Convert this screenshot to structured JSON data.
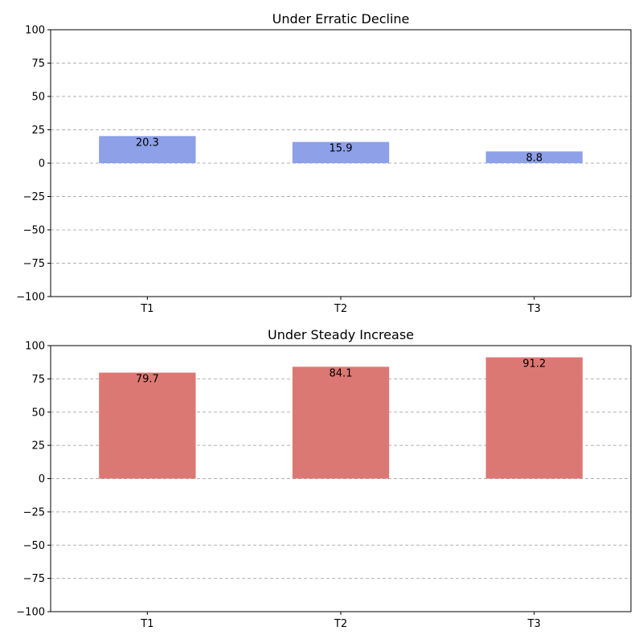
{
  "chart_data": [
    {
      "type": "bar",
      "title": "Under Erratic Decline",
      "categories": [
        "T1",
        "T2",
        "T3"
      ],
      "values": [
        20.3,
        15.9,
        8.8
      ],
      "data_labels": [
        "20.3",
        "15.9",
        "8.8"
      ],
      "ylim": [
        -100,
        100
      ],
      "yticks": [
        -100,
        -75,
        -50,
        -25,
        0,
        25,
        50,
        75,
        100
      ],
      "ytick_labels": [
        "−100",
        "−75",
        "−50",
        "−25",
        "0",
        "25",
        "50",
        "75",
        "100"
      ],
      "grid": "horizontal dashed",
      "bar_color": "#8da0e8"
    },
    {
      "type": "bar",
      "title": "Under Steady Increase",
      "categories": [
        "T1",
        "T2",
        "T3"
      ],
      "values": [
        79.7,
        84.1,
        91.2
      ],
      "data_labels": [
        "79.7",
        "84.1",
        "91.2"
      ],
      "ylim": [
        -100,
        100
      ],
      "yticks": [
        -100,
        -75,
        -50,
        -25,
        0,
        25,
        50,
        75,
        100
      ],
      "ytick_labels": [
        "−100",
        "−75",
        "−50",
        "−25",
        "0",
        "25",
        "50",
        "75",
        "100"
      ],
      "grid": "horizontal dashed",
      "bar_color": "#dc7873"
    }
  ]
}
